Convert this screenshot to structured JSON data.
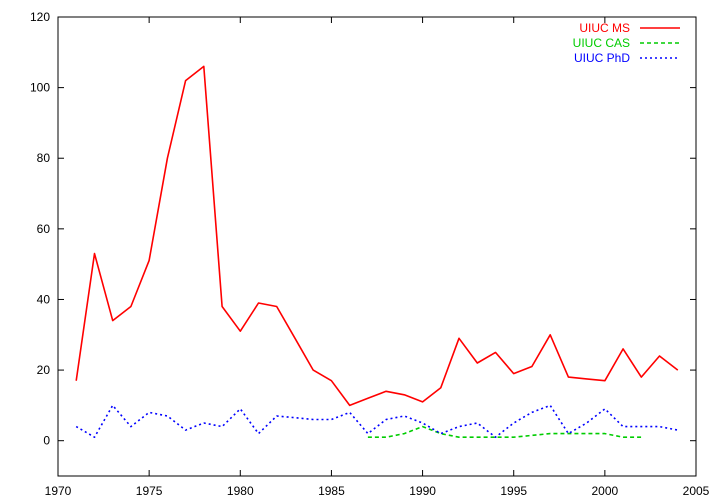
{
  "chart_data": {
    "type": "line",
    "title": "",
    "xlabel": "",
    "ylabel": "",
    "xlim": [
      1970,
      2005
    ],
    "ylim": [
      -10,
      120
    ],
    "x_ticks": [
      1970,
      1975,
      1980,
      1985,
      1990,
      1995,
      2000,
      2005
    ],
    "y_ticks": [
      0,
      20,
      40,
      60,
      80,
      100,
      120
    ],
    "x_tick_labels": [
      "1970",
      "1975",
      "1980",
      "1985",
      "1990",
      "1995",
      "2000",
      "2005"
    ],
    "y_tick_labels": [
      "0",
      "20",
      "40",
      "60",
      "80",
      "100",
      "120"
    ],
    "grid": false,
    "legend_position": "top-right",
    "series": [
      {
        "name": "UIUC MS",
        "color": "#ff0000",
        "style": "solid",
        "x": [
          1971,
          1972,
          1973,
          1974,
          1975,
          1976,
          1977,
          1978,
          1979,
          1980,
          1981,
          1982,
          1983,
          1984,
          1985,
          1986,
          1987,
          1988,
          1989,
          1990,
          1991,
          1992,
          1993,
          1994,
          1995,
          1996,
          1997,
          1998,
          1999,
          2000,
          2001,
          2002,
          2003,
          2004
        ],
        "y": [
          17,
          53,
          34,
          38,
          51,
          80,
          102,
          106,
          38,
          31,
          39,
          38,
          29,
          20,
          17,
          10,
          12,
          14,
          13,
          11,
          15,
          29,
          22,
          25,
          19,
          21,
          30,
          18,
          17.5,
          17,
          26,
          18,
          24,
          20
        ]
      },
      {
        "name": "UIUC CAS",
        "color": "#00cc00",
        "style": "dashed",
        "x": [
          1987,
          1988,
          1989,
          1990,
          1991,
          1992,
          1993,
          1994,
          1995,
          1996,
          1997,
          1998,
          1999,
          2000,
          2001,
          2002
        ],
        "y": [
          1,
          1,
          2,
          4,
          2,
          1,
          1,
          1,
          1,
          1.5,
          2,
          2,
          2,
          2,
          1,
          1
        ]
      },
      {
        "name": "UIUC PhD",
        "color": "#0000ff",
        "style": "dotted",
        "x": [
          1971,
          1972,
          1973,
          1974,
          1975,
          1976,
          1977,
          1978,
          1979,
          1980,
          1981,
          1982,
          1983,
          1984,
          1985,
          1986,
          1987,
          1988,
          1989,
          1990,
          1991,
          1992,
          1993,
          1994,
          1995,
          1996,
          1997,
          1998,
          1999,
          2000,
          2001,
          2002,
          2003,
          2004
        ],
        "y": [
          4,
          1,
          10,
          4,
          8,
          7,
          3,
          5,
          4,
          9,
          2,
          7,
          6.5,
          6,
          6,
          8,
          2,
          6,
          7,
          5,
          2,
          4,
          5,
          1,
          5,
          8,
          10,
          2,
          5,
          9,
          4,
          4,
          4,
          3
        ]
      }
    ]
  }
}
